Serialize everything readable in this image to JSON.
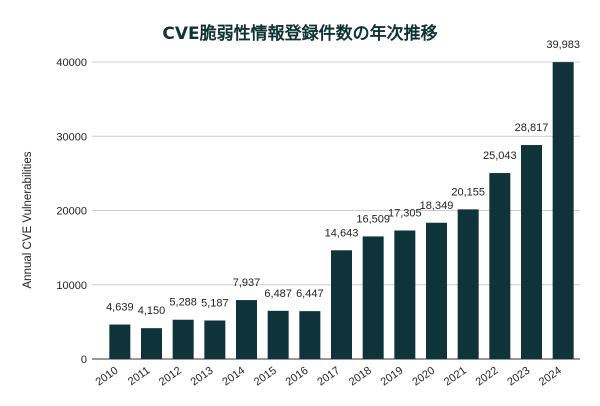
{
  "chart_data": {
    "type": "bar",
    "title": "CVE脆弱性情報登録件数の年次推移",
    "ylabel": "Annual CVE Vulnerabilities",
    "xlabel": "",
    "categories": [
      "2010",
      "2011",
      "2012",
      "2013",
      "2014",
      "2015",
      "2016",
      "2017",
      "2018",
      "2019",
      "2020",
      "2021",
      "2022",
      "2023",
      "2024"
    ],
    "values": [
      4639,
      4150,
      5288,
      5187,
      7937,
      6487,
      6447,
      14643,
      16509,
      17305,
      18349,
      20155,
      25043,
      28817,
      39983
    ],
    "data_labels": [
      "4,639",
      "4,150",
      "5,288",
      "5,187",
      "7,937",
      "6,487",
      "6,447",
      "14,643",
      "16,509",
      "17,305",
      "18,349",
      "20,155",
      "25,043",
      "28,817",
      "39,983"
    ],
    "ylim": [
      0,
      40000
    ],
    "yticks": [
      0,
      10000,
      20000,
      30000,
      40000
    ],
    "ytick_labels": [
      "0",
      "10000",
      "20000",
      "30000",
      "40000"
    ],
    "grid": true,
    "legend": "none",
    "bar_color": "#0e3338",
    "grid_color": "#cccccc"
  }
}
